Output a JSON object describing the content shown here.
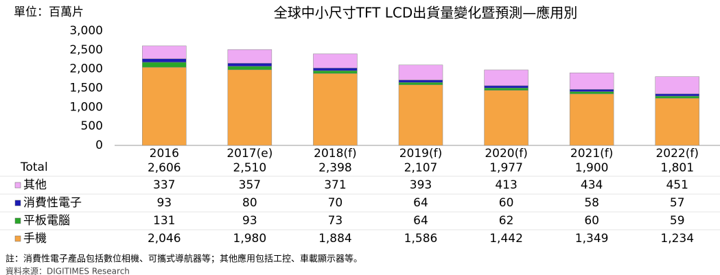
{
  "chart_data": {
    "type": "bar",
    "stacked": true,
    "title": "全球中小尺寸TFT LCD出貨量變化暨預測—應用別",
    "unit_label": "單位：百萬片",
    "categories": [
      "2016",
      "2017(e)",
      "2018(f)",
      "2019(f)",
      "2020(f)",
      "2021(f)",
      "2022(f)"
    ],
    "series": [
      {
        "name": "手機",
        "color": "#f5a443",
        "values": [
          2046,
          1980,
          1884,
          1586,
          1442,
          1349,
          1234
        ],
        "value_labels": [
          "2,046",
          "1,980",
          "1,884",
          "1,586",
          "1,442",
          "1,349",
          "1,234"
        ]
      },
      {
        "name": "平板電腦",
        "color": "#2aa62a",
        "values": [
          131,
          93,
          73,
          64,
          62,
          60,
          59
        ]
      },
      {
        "name": "消費性電子",
        "color": "#1c1cb4",
        "values": [
          93,
          80,
          70,
          64,
          60,
          58,
          57
        ]
      },
      {
        "name": "其他",
        "color": "#eeaaf4",
        "values": [
          337,
          357,
          371,
          393,
          413,
          434,
          451
        ]
      }
    ],
    "total": {
      "name": "Total",
      "values": [
        2606,
        2510,
        2398,
        2107,
        1977,
        1900,
        1801
      ],
      "value_labels": [
        "2,606",
        "2,510",
        "2,398",
        "2,107",
        "1,977",
        "1,900",
        "1,801"
      ]
    },
    "ylim": [
      0,
      3000
    ],
    "yticks": [
      0,
      500,
      {
        "value": 1000,
        "label": "1,000"
      },
      {
        "value": 1500,
        "label": "1,500"
      },
      {
        "value": 2000,
        "label": "2,000"
      },
      {
        "value": 2500,
        "label": "2,500"
      },
      {
        "value": 3000,
        "label": "3,000"
      }
    ],
    "grid": false,
    "note": "註：消費性電子產品包括數位相機、可攜式導航器等；其他應用包括工控、車載顯示器等。",
    "source": "資料來源：DIGITIMES Research"
  }
}
